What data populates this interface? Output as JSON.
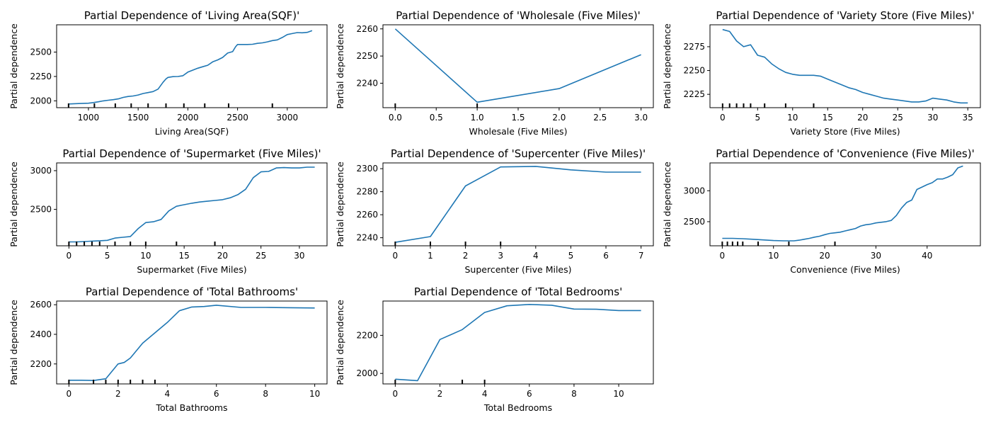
{
  "chart_data": [
    {
      "type": "line",
      "title": "Partial Dependence of 'Living Area(SQF)'",
      "xlabel": "Living Area(SQF)",
      "ylabel": "Partial dependence",
      "xlim": [
        680,
        3400
      ],
      "ylim": [
        1930,
        2780
      ],
      "xticks": [
        1000,
        1500,
        2000,
        2500,
        3000
      ],
      "yticks": [
        2000,
        2250,
        2500
      ],
      "x": [
        800,
        900,
        1000,
        1050,
        1100,
        1150,
        1200,
        1250,
        1300,
        1350,
        1400,
        1450,
        1500,
        1550,
        1600,
        1650,
        1700,
        1750,
        1780,
        1800,
        1850,
        1900,
        1950,
        2000,
        2050,
        2100,
        2150,
        2200,
        2250,
        2300,
        2350,
        2400,
        2450,
        2480,
        2500,
        2550,
        2600,
        2650,
        2700,
        2750,
        2800,
        2850,
        2900,
        2950,
        3000,
        3050,
        3100,
        3150,
        3200,
        3250
      ],
      "y": [
        1968,
        1972,
        1976,
        1982,
        1990,
        2000,
        2006,
        2012,
        2020,
        2035,
        2045,
        2050,
        2060,
        2075,
        2085,
        2095,
        2120,
        2190,
        2225,
        2240,
        2248,
        2250,
        2258,
        2295,
        2315,
        2335,
        2350,
        2365,
        2400,
        2420,
        2445,
        2490,
        2505,
        2555,
        2578,
        2578,
        2578,
        2580,
        2590,
        2595,
        2605,
        2618,
        2625,
        2650,
        2680,
        2690,
        2700,
        2698,
        2702,
        2720
      ],
      "rug": [
        800,
        1060,
        1270,
        1430,
        1600,
        1780,
        1960,
        2170,
        2410,
        2850
      ]
    },
    {
      "type": "line",
      "title": "Partial Dependence of 'Wholesale (Five Miles)'",
      "xlabel": "Wholesale (Five Miles)",
      "ylabel": "Partial dependence",
      "xlim": [
        -0.15,
        3.15
      ],
      "ylim": [
        2231,
        2261.5
      ],
      "xticks": [
        0.0,
        0.5,
        1.0,
        1.5,
        2.0,
        2.5,
        3.0
      ],
      "yticks": [
        2240,
        2250,
        2260
      ],
      "x": [
        0,
        1,
        2,
        3
      ],
      "y": [
        2260,
        2233,
        2238,
        2250.5
      ],
      "rug": [
        0,
        1
      ]
    },
    {
      "type": "line",
      "title": "Partial Dependence of 'Variety Store (Five Miles)'",
      "xlabel": "Variety Store (Five Miles)",
      "ylabel": "Partial dependence",
      "xlim": [
        -1.8,
        36.8
      ],
      "ylim": [
        2211,
        2298
      ],
      "xticks": [
        0,
        5,
        10,
        15,
        20,
        25,
        30,
        35
      ],
      "yticks": [
        2225,
        2250,
        2275
      ],
      "x": [
        0,
        1,
        2,
        3,
        4,
        5,
        6,
        7,
        8,
        9,
        10,
        11,
        12,
        13,
        14,
        15,
        16,
        17,
        18,
        19,
        20,
        21,
        22,
        23,
        24,
        25,
        26,
        27,
        28,
        29,
        30,
        31,
        32,
        33,
        34,
        35
      ],
      "y": [
        2293,
        2291,
        2281,
        2275,
        2277,
        2266,
        2264,
        2257,
        2252,
        2248,
        2246,
        2245,
        2245,
        2245,
        2244,
        2241,
        2238,
        2235,
        2232,
        2230,
        2227,
        2225,
        2223,
        2221,
        2220,
        2219,
        2218,
        2217,
        2217,
        2218,
        2221,
        2220,
        2219,
        2217,
        2216,
        2216
      ],
      "rug": [
        0,
        1,
        2,
        3,
        4,
        6,
        9,
        13
      ]
    },
    {
      "type": "line",
      "title": "Partial Dependence of 'Supermarket (Five Miles)'",
      "xlabel": "Supermarket (Five Miles)",
      "ylabel": "Partial dependence",
      "xlim": [
        -1.6,
        33.6
      ],
      "ylim": [
        2030,
        3100
      ],
      "xticks": [
        0,
        5,
        10,
        15,
        20,
        25,
        30
      ],
      "yticks": [
        2500,
        3000
      ],
      "x": [
        0,
        1,
        2,
        3,
        4,
        5,
        6,
        7,
        8,
        9,
        10,
        11,
        12,
        13,
        14,
        15,
        16,
        17,
        18,
        19,
        20,
        21,
        22,
        23,
        24,
        25,
        26,
        27,
        28,
        29,
        30,
        31,
        32
      ],
      "y": [
        2080,
        2080,
        2085,
        2090,
        2095,
        2100,
        2130,
        2140,
        2150,
        2250,
        2330,
        2340,
        2370,
        2480,
        2540,
        2560,
        2580,
        2595,
        2605,
        2615,
        2625,
        2650,
        2690,
        2760,
        2910,
        2985,
        2990,
        3035,
        3040,
        3035,
        3035,
        3045,
        3045
      ],
      "rug": [
        0,
        1,
        2,
        3,
        4,
        6,
        8,
        10,
        14,
        19
      ]
    },
    {
      "type": "line",
      "title": "Partial Dependence of 'Supercenter (Five Miles)'",
      "xlabel": "Supercenter (Five Miles)",
      "ylabel": "Partial dependence",
      "xlim": [
        -0.35,
        7.35
      ],
      "ylim": [
        2233,
        2305
      ],
      "xticks": [
        0,
        1,
        2,
        3,
        4,
        5,
        6,
        7
      ],
      "yticks": [
        2240,
        2260,
        2280,
        2300
      ],
      "x": [
        0,
        1,
        2,
        3,
        4,
        5,
        6,
        7
      ],
      "y": [
        2236,
        2241,
        2285,
        2301.5,
        2302,
        2299,
        2297,
        2297
      ],
      "rug": [
        0,
        1,
        2,
        3
      ]
    },
    {
      "type": "line",
      "title": "Partial Dependence of 'Convenience (Five Miles)'",
      "xlabel": "Convenience (Five Miles)",
      "ylabel": "Partial dependence",
      "xlim": [
        -2.4,
        50.4
      ],
      "ylim": [
        2110,
        3450
      ],
      "xticks": [
        0,
        10,
        20,
        30,
        40
      ],
      "yticks": [
        2500,
        3000
      ],
      "x": [
        0,
        2,
        4,
        6,
        8,
        10,
        12,
        14,
        15,
        16,
        17,
        18,
        19,
        20,
        21,
        22,
        23,
        24,
        25,
        26,
        27,
        28,
        29,
        30,
        31,
        32,
        33,
        34,
        35,
        36,
        37,
        38,
        39,
        40,
        41,
        42,
        43,
        44,
        45,
        46,
        47
      ],
      "y": [
        2230,
        2230,
        2225,
        2215,
        2205,
        2195,
        2190,
        2190,
        2200,
        2215,
        2230,
        2250,
        2265,
        2290,
        2310,
        2320,
        2330,
        2350,
        2370,
        2390,
        2430,
        2450,
        2460,
        2480,
        2490,
        2500,
        2520,
        2600,
        2720,
        2810,
        2850,
        3020,
        3060,
        3100,
        3130,
        3190,
        3190,
        3220,
        3260,
        3370,
        3400
      ],
      "rug": [
        0,
        1,
        2,
        3,
        4,
        7,
        13,
        22
      ]
    },
    {
      "type": "line",
      "title": "Partial Dependence of 'Total Bathrooms'",
      "xlabel": "Total Bathrooms",
      "ylabel": "Partial dependence",
      "xlim": [
        -0.5,
        10.5
      ],
      "ylim": [
        2065,
        2625
      ],
      "xticks": [
        0,
        2,
        4,
        6,
        8,
        10
      ],
      "yticks": [
        2200,
        2400,
        2600
      ],
      "x": [
        0,
        0.5,
        1,
        1.5,
        2,
        2.25,
        2.5,
        3,
        3.5,
        4,
        4.5,
        5,
        5.5,
        6,
        7,
        8,
        9,
        10
      ],
      "y": [
        2090,
        2090,
        2088,
        2100,
        2200,
        2210,
        2240,
        2340,
        2410,
        2480,
        2560,
        2585,
        2588,
        2597,
        2582,
        2582,
        2580,
        2578
      ],
      "rug": [
        0,
        1,
        1.5,
        2,
        2.5,
        3,
        3.5
      ]
    },
    {
      "type": "line",
      "title": "Partial Dependence of 'Total Bedrooms'",
      "xlabel": "Total Bedrooms",
      "ylabel": "Partial dependence",
      "xlim": [
        -0.55,
        11.55
      ],
      "ylim": [
        1945,
        2380
      ],
      "xticks": [
        0,
        2,
        4,
        6,
        8,
        10
      ],
      "yticks": [
        2000,
        2200
      ],
      "x": [
        0,
        1,
        2,
        3,
        4,
        5,
        6,
        7,
        8,
        9,
        10,
        11
      ],
      "y": [
        1970,
        1962,
        2178,
        2230,
        2320,
        2355,
        2362,
        2358,
        2338,
        2337,
        2330,
        2330
      ],
      "rug": [
        0,
        3,
        4
      ]
    }
  ]
}
